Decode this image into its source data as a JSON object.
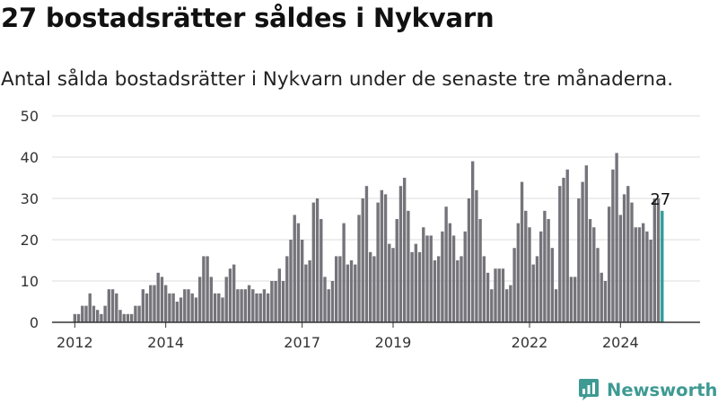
{
  "title": "27 bostadsrätter såldes i Nykvarn",
  "subtitle": "Antal sålda bostadsrätter i Nykvarn under de senaste tre månaderna.",
  "brand": {
    "name": "Newsworthy",
    "icon": "newsworthy-logo-icon"
  },
  "colors": {
    "bar": "#75747a",
    "highlight": "#2e9e97",
    "grid": "#dddddd",
    "axis": "#333333",
    "text": "#333333",
    "brand": "#3e9a93"
  },
  "chart_data": {
    "type": "bar",
    "ylim": [
      0,
      50
    ],
    "y_ticks": [
      0,
      10,
      20,
      30,
      40,
      50
    ],
    "x_range": [
      "2011-07",
      "2025-10"
    ],
    "x_ticks": [
      {
        "label": "2012",
        "date": "2012-01"
      },
      {
        "label": "2014",
        "date": "2014-01"
      },
      {
        "label": "2017",
        "date": "2017-01"
      },
      {
        "label": "2019",
        "date": "2019-01"
      },
      {
        "label": "2022",
        "date": "2022-01"
      },
      {
        "label": "2024",
        "date": "2024-01"
      }
    ],
    "grid": true,
    "legend": "none",
    "months": [
      "2012-01",
      "2012-02",
      "2012-03",
      "2012-04",
      "2012-05",
      "2012-06",
      "2012-07",
      "2012-08",
      "2012-09",
      "2012-10",
      "2012-11",
      "2012-12",
      "2013-01",
      "2013-02",
      "2013-03",
      "2013-04",
      "2013-05",
      "2013-06",
      "2013-07",
      "2013-08",
      "2013-09",
      "2013-10",
      "2013-11",
      "2013-12",
      "2014-01",
      "2014-02",
      "2014-03",
      "2014-04",
      "2014-05",
      "2014-06",
      "2014-07",
      "2014-08",
      "2014-09",
      "2014-10",
      "2014-11",
      "2014-12",
      "2015-01",
      "2015-02",
      "2015-03",
      "2015-04",
      "2015-05",
      "2015-06",
      "2015-07",
      "2015-08",
      "2015-09",
      "2015-10",
      "2015-11",
      "2015-12",
      "2016-01",
      "2016-02",
      "2016-03",
      "2016-04",
      "2016-05",
      "2016-06",
      "2016-07",
      "2016-08",
      "2016-09",
      "2016-10",
      "2016-11",
      "2016-12",
      "2017-01",
      "2017-02",
      "2017-03",
      "2017-04",
      "2017-05",
      "2017-06",
      "2017-07",
      "2017-08",
      "2017-09",
      "2017-10",
      "2017-11",
      "2017-12",
      "2018-01",
      "2018-02",
      "2018-03",
      "2018-04",
      "2018-05",
      "2018-06",
      "2018-07",
      "2018-08",
      "2018-09",
      "2018-10",
      "2018-11",
      "2018-12",
      "2019-01",
      "2019-02",
      "2019-03",
      "2019-04",
      "2019-05",
      "2019-06",
      "2019-07",
      "2019-08",
      "2019-09",
      "2019-10",
      "2019-11",
      "2019-12",
      "2020-01",
      "2020-02",
      "2020-03",
      "2020-04",
      "2020-05",
      "2020-06",
      "2020-07",
      "2020-08",
      "2020-09",
      "2020-10",
      "2020-11",
      "2020-12",
      "2021-01",
      "2021-02",
      "2021-03",
      "2021-04",
      "2021-05",
      "2021-06",
      "2021-07",
      "2021-08",
      "2021-09",
      "2021-10",
      "2021-11",
      "2021-12",
      "2022-01",
      "2022-02",
      "2022-03",
      "2022-04",
      "2022-05",
      "2022-06",
      "2022-07",
      "2022-08",
      "2022-09",
      "2022-10",
      "2022-11",
      "2022-12",
      "2023-01",
      "2023-02",
      "2023-03",
      "2023-04",
      "2023-05",
      "2023-06",
      "2023-07",
      "2023-08",
      "2023-09",
      "2023-10",
      "2023-11",
      "2023-12",
      "2024-01",
      "2024-02",
      "2024-03",
      "2024-04",
      "2024-05",
      "2024-06",
      "2024-07",
      "2024-08",
      "2024-09",
      "2024-10",
      "2024-11",
      "2024-12"
    ],
    "values": [
      2,
      2,
      4,
      4,
      7,
      4,
      3,
      2,
      4,
      8,
      8,
      7,
      3,
      2,
      2,
      2,
      4,
      4,
      8,
      7,
      9,
      9,
      12,
      11,
      9,
      7,
      7,
      5,
      6,
      8,
      8,
      7,
      6,
      11,
      16,
      16,
      11,
      7,
      7,
      6,
      11,
      13,
      14,
      8,
      8,
      8,
      9,
      8,
      7,
      7,
      8,
      7,
      10,
      10,
      13,
      10,
      16,
      20,
      26,
      24,
      20,
      14,
      15,
      29,
      30,
      25,
      11,
      8,
      10,
      16,
      16,
      24,
      14,
      15,
      14,
      26,
      30,
      33,
      17,
      16,
      29,
      32,
      31,
      19,
      18,
      25,
      33,
      35,
      27,
      17,
      19,
      17,
      23,
      21,
      21,
      15,
      16,
      22,
      28,
      24,
      21,
      15,
      16,
      22,
      30,
      39,
      32,
      25,
      16,
      12,
      8,
      13,
      13,
      13,
      8,
      9,
      18,
      24,
      34,
      27,
      23,
      14,
      16,
      22,
      27,
      25,
      18,
      8,
      33,
      35,
      37,
      11,
      11,
      30,
      34,
      38,
      25,
      23,
      18,
      12,
      10,
      28,
      37,
      41,
      26,
      31,
      33,
      29,
      23,
      23,
      24,
      22,
      20,
      30,
      30,
      27
    ],
    "highlight_last": true,
    "last_label": "27"
  }
}
